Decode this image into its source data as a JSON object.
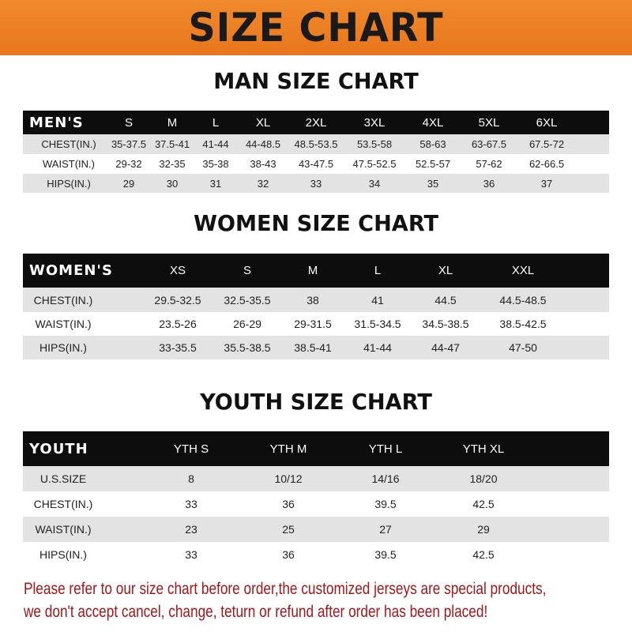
{
  "banner_title": "SIZE CHART",
  "men": {
    "title": "MAN SIZE CHART",
    "header": "MEN'S",
    "sizes": [
      "S",
      "M",
      "L",
      "XL",
      "2XL",
      "3XL",
      "4XL",
      "5XL",
      "6XL"
    ],
    "rows": [
      {
        "label": "CHEST(IN.)",
        "values": [
          "35-37.5",
          "37.5-41",
          "41-44",
          "44-48.5",
          "48.5-53.5",
          "53.5-58",
          "58-63",
          "63-67.5",
          "67.5-72"
        ]
      },
      {
        "label": "WAIST(IN.)",
        "values": [
          "29-32",
          "32-35",
          "35-38",
          "38-43",
          "43-47.5",
          "47.5-52.5",
          "52.5-57",
          "57-62",
          "62-66.5"
        ]
      },
      {
        "label": "HIPS(IN.)",
        "values": [
          "29",
          "30",
          "31",
          "32",
          "33",
          "34",
          "35",
          "36",
          "37"
        ]
      }
    ]
  },
  "women": {
    "title": "WOMEN SIZE CHART",
    "header": "WOMEN'S",
    "sizes": [
      "XS",
      "S",
      "M",
      "L",
      "XL",
      "XXL"
    ],
    "rows": [
      {
        "label": "CHEST(IN.)",
        "values": [
          "29.5-32.5",
          "32.5-35.5",
          "38",
          "41",
          "44.5",
          "44.5-48.5"
        ]
      },
      {
        "label": "WAIST(IN.)",
        "values": [
          "23.5-26",
          "26-29",
          "29-31.5",
          "31.5-34.5",
          "34.5-38.5",
          "38.5-42.5"
        ]
      },
      {
        "label": "HIPS(IN.)",
        "values": [
          "33-35.5",
          "35.5-38.5",
          "38.5-41",
          "41-44",
          "44-47",
          "47-50"
        ]
      }
    ]
  },
  "youth": {
    "title": "YOUTH SIZE CHART",
    "header": "YOUTH",
    "sizes": [
      "YTH S",
      "YTH M",
      "YTH L",
      "YTH XL"
    ],
    "rows": [
      {
        "label": "U.S.SIZE",
        "values": [
          "8",
          "10/12",
          "14/16",
          "18/20"
        ]
      },
      {
        "label": "CHEST(IN.)",
        "values": [
          "33",
          "36",
          "39.5",
          "42.5"
        ]
      },
      {
        "label": "WAIST(IN.)",
        "values": [
          "23",
          "25",
          "27",
          "29"
        ]
      },
      {
        "label": "HIPS(IN.)",
        "values": [
          "33",
          "36",
          "39.5",
          "42.5"
        ]
      }
    ]
  },
  "notice": {
    "line1": "Please refer to our size chart before order,the customized jerseys are special products,",
    "line2": "we don't accept cancel, change, teturn or refund after order has been placed!"
  },
  "colors": {
    "banner": "#ec7f24",
    "header_row": "#0d0d0d",
    "stripe": "#e3e3e3",
    "notice": "#a4161a"
  }
}
